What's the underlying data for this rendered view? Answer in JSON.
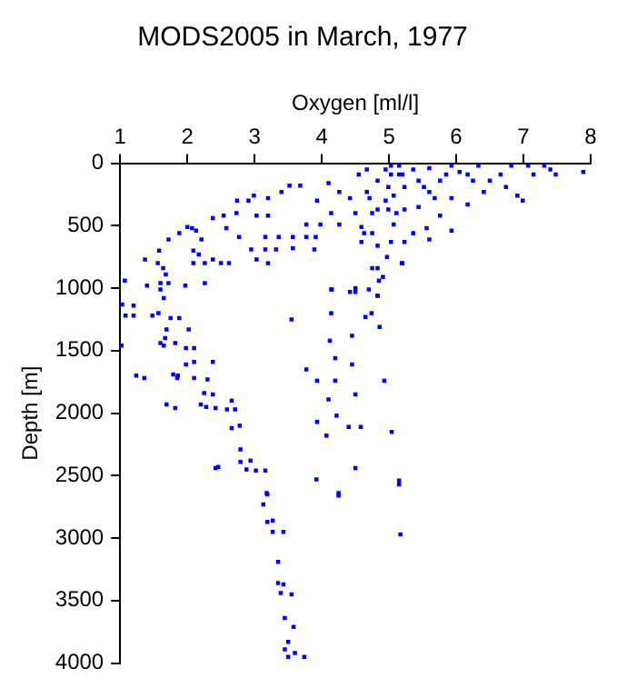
{
  "chart_data": {
    "type": "scatter",
    "title": "MODS2005 in March, 1977",
    "xlabel": "Oxygen [ml/l]",
    "ylabel": "Depth [m]",
    "xlim": [
      1,
      8
    ],
    "xticks": [
      1,
      2,
      3,
      4,
      5,
      6,
      7,
      8
    ],
    "ylim": [
      4000,
      0
    ],
    "yticks": [
      0,
      500,
      1000,
      1500,
      2000,
      2500,
      3000,
      3500,
      4000
    ],
    "marker": "square",
    "series": [
      {
        "color": "#0000ff",
        "x": [
          1.07,
          1.4,
          1.6,
          1.72,
          1.97,
          2.26,
          1.37,
          1.58,
          1.56,
          1.64,
          1.68,
          1.72,
          1.88,
          2.0,
          2.07,
          2.13,
          2.09,
          2.17,
          2.09,
          2.26,
          2.38,
          2.5,
          2.62,
          2.21,
          2.38,
          2.54,
          2.58,
          2.77,
          2.73,
          2.74,
          2.91,
          2.99,
          3.2,
          3.03,
          3.2,
          3.16,
          2.95,
          3.16,
          3.32,
          3.2,
          3.03,
          3.36,
          3.57,
          3.77,
          3.91,
          3.89,
          3.57,
          3.77,
          3.98,
          4.26,
          4.59,
          4.14,
          4.5,
          4.75,
          3.4,
          3.52,
          3.68,
          3.93,
          4.1,
          4.26,
          4.42,
          4.55,
          4.67,
          4.67,
          4.63,
          4.75,
          4.83,
          4.97,
          5.03,
          5.07,
          5.2,
          5.11,
          4.95,
          4.83,
          4.95,
          5.03,
          5.15,
          5.23,
          5.36,
          5.44,
          5.6,
          5.44,
          5.76,
          5.93,
          5.56,
          5.36,
          5.23,
          5.93,
          6.17,
          6.33,
          6.5,
          6.66,
          6.82,
          7.07,
          7.31,
          7.48,
          7.89,
          6.99,
          6.91,
          6.41,
          6.17,
          5.93,
          5.6,
          4.59,
          4.83,
          4.91,
          4.85,
          4.75,
          5.19,
          7.15,
          7.4,
          6.74,
          6.25,
          6.05,
          5.76,
          5.6,
          5.23,
          5.07,
          4.99,
          4.83,
          4.71,
          4.99,
          5.03,
          5.15,
          5.2,
          5.52,
          5.68,
          5.85,
          4.14,
          4.83,
          4.5,
          1.03,
          1.08,
          1.2,
          1.2,
          1.48,
          1.57,
          1.6,
          1.65,
          1.75,
          1.88,
          1.69,
          1.67,
          1.6,
          1.65,
          1.82,
          1.98,
          2.1,
          1.02,
          2.02,
          1.98,
          2.1,
          2.38,
          1.24,
          1.36,
          1.79,
          1.86,
          1.85,
          2.1,
          2.3,
          2.25,
          2.2,
          2.28,
          1.69,
          1.82,
          2.38,
          2.42,
          2.66,
          2.59,
          2.71,
          2.66,
          2.78,
          2.79,
          2.79,
          2.94,
          2.88,
          3.02,
          3.16,
          2.42,
          2.46,
          3.18,
          3.55,
          3.77,
          3.93,
          3.93,
          4.1,
          4.22,
          4.14,
          4.12,
          4.2,
          4.2,
          4.45,
          4.45,
          4.5,
          4.5,
          4.4,
          4.58,
          4.07,
          3.92,
          4.25,
          4.65,
          4.74,
          4.86,
          4.93,
          5.04,
          5.15,
          5.17,
          4.42,
          4.5,
          4.7,
          4.83,
          4.15,
          3.19,
          3.13,
          3.19,
          3.27,
          3.27,
          3.43,
          3.35,
          3.35,
          3.43,
          3.39,
          3.55,
          3.45,
          3.58,
          3.5,
          3.45,
          3.5,
          3.74,
          3.6,
          4.25,
          5.15
        ],
        "values": [
          940,
          980,
          960,
          960,
          980,
          960,
          770,
          700,
          800,
          840,
          890,
          610,
          560,
          510,
          520,
          540,
          700,
          730,
          800,
          800,
          770,
          800,
          800,
          610,
          440,
          420,
          520,
          590,
          400,
          300,
          300,
          260,
          280,
          420,
          420,
          590,
          690,
          690,
          690,
          800,
          770,
          590,
          590,
          590,
          590,
          690,
          680,
          490,
          490,
          490,
          510,
          400,
          400,
          400,
          230,
          180,
          180,
          300,
          160,
          230,
          280,
          90,
          50,
          230,
          560,
          560,
          660,
          750,
          630,
          490,
          800,
          400,
          300,
          140,
          50,
          20,
          90,
          190,
          50,
          140,
          230,
          350,
          420,
          280,
          520,
          560,
          630,
          20,
          90,
          20,
          140,
          90,
          20,
          20,
          20,
          90,
          70,
          300,
          260,
          230,
          330,
          540,
          610,
          630,
          840,
          910,
          940,
          840,
          800,
          90,
          50,
          190,
          140,
          70,
          140,
          40,
          370,
          260,
          370,
          370,
          280,
          190,
          90,
          20,
          90,
          190,
          280,
          90,
          1010,
          1060,
          1000,
          1130,
          1220,
          1220,
          1140,
          1220,
          1200,
          1010,
          1080,
          1240,
          1240,
          1330,
          1400,
          1440,
          1460,
          1440,
          1480,
          1480,
          1460,
          1330,
          1610,
          1590,
          1590,
          1700,
          1720,
          1690,
          1700,
          1720,
          1720,
          1730,
          1840,
          1930,
          1950,
          1930,
          1960,
          1850,
          1960,
          1900,
          1970,
          1970,
          2120,
          2100,
          2290,
          2390,
          2380,
          2450,
          2460,
          2460,
          2440,
          2430,
          2640,
          1250,
          1650,
          1740,
          2070,
          1890,
          2020,
          1200,
          1420,
          1560,
          1740,
          1380,
          1610,
          1850,
          2440,
          2110,
          2110,
          2180,
          2530,
          2660,
          1230,
          1200,
          1310,
          1740,
          2150,
          2570,
          2970,
          1030,
          1030,
          1010,
          1060,
          1010,
          2650,
          2730,
          2870,
          2860,
          2950,
          2950,
          3190,
          3360,
          3370,
          3440,
          3450,
          3640,
          3710,
          3830,
          3890,
          3950,
          3950,
          3920,
          2640,
          2540
        ]
      }
    ]
  }
}
